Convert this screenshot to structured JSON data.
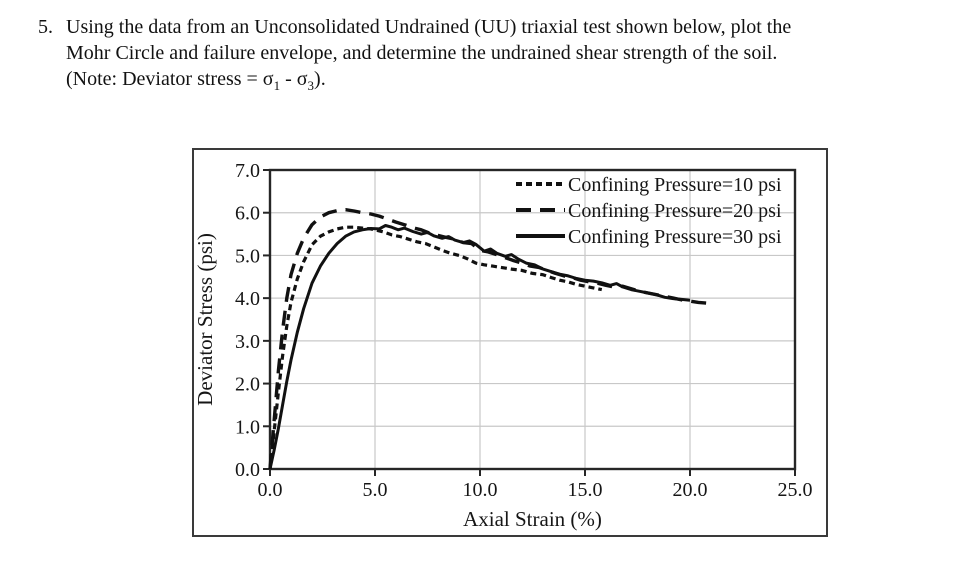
{
  "problem": {
    "number": "5.",
    "lines": [
      "Using the data from an Unconsolidated Undrained (UU) triaxial test shown below, plot the",
      "Mohr Circle and failure envelope, and determine the undrained shear strength of the soil."
    ],
    "note": {
      "prefix": "(Note: Deviator stress = ",
      "sigma1": "σ",
      "sub1": "1",
      "mid": " - ",
      "sigma3": "σ",
      "sub3": "3",
      "suffix": ")."
    }
  },
  "chart_data": {
    "type": "line",
    "title": "",
    "xlabel": "Axial Strain (%)",
    "ylabel": "Deviator Stress (psi)",
    "xlim": [
      0,
      25
    ],
    "ylim": [
      0,
      7
    ],
    "x_ticks": [
      0,
      5,
      10,
      15,
      20,
      25
    ],
    "x_tick_labels": [
      "0.0",
      "5.0",
      "10.0",
      "15.0",
      "20.0",
      "25.0"
    ],
    "y_ticks": [
      0,
      1,
      2,
      3,
      4,
      5,
      6,
      7
    ],
    "y_tick_labels": [
      "0.0",
      "1.0",
      "2.0",
      "3.0",
      "4.0",
      "5.0",
      "6.0",
      "7.0"
    ],
    "grid": true,
    "legend_position": "top-right-inside",
    "colors": {
      "line": "#111111",
      "grid": "#c8c8c8",
      "axis": "#262626",
      "frame": "#3a3a3a",
      "text": "#161616"
    },
    "series": [
      {
        "name": "Confining Pressure=10 psi",
        "dash": "short-dash",
        "peak_stress_psi": 5.66,
        "points": [
          [
            0,
            0
          ],
          [
            0.2,
            0.9
          ],
          [
            0.4,
            1.8
          ],
          [
            0.6,
            2.65
          ],
          [
            0.8,
            3.35
          ],
          [
            1,
            3.9
          ],
          [
            1.3,
            4.45
          ],
          [
            1.6,
            4.85
          ],
          [
            2,
            5.25
          ],
          [
            2.4,
            5.45
          ],
          [
            2.8,
            5.55
          ],
          [
            3.2,
            5.62
          ],
          [
            3.6,
            5.66
          ],
          [
            4,
            5.66
          ],
          [
            4.4,
            5.64
          ],
          [
            4.8,
            5.62
          ],
          [
            5,
            5.6
          ],
          [
            5.4,
            5.55
          ],
          [
            5.8,
            5.48
          ],
          [
            6.2,
            5.44
          ],
          [
            6.6,
            5.38
          ],
          [
            7,
            5.32
          ],
          [
            7.4,
            5.28
          ],
          [
            7.8,
            5.2
          ],
          [
            8.2,
            5.12
          ],
          [
            8.6,
            5.05
          ],
          [
            9,
            5.0
          ],
          [
            9.4,
            4.92
          ],
          [
            9.8,
            4.82
          ],
          [
            10.2,
            4.78
          ],
          [
            10.6,
            4.75
          ],
          [
            11,
            4.72
          ],
          [
            11.5,
            4.68
          ],
          [
            12,
            4.65
          ],
          [
            12.5,
            4.58
          ],
          [
            13,
            4.55
          ],
          [
            13.4,
            4.48
          ],
          [
            13.8,
            4.42
          ],
          [
            14.2,
            4.38
          ],
          [
            14.6,
            4.32
          ],
          [
            15,
            4.28
          ],
          [
            15.4,
            4.24
          ],
          [
            15.8,
            4.2
          ]
        ]
      },
      {
        "name": "Confining Pressure=20 psi",
        "dash": "long-dash",
        "peak_stress_psi": 6.07,
        "points": [
          [
            0,
            0
          ],
          [
            0.2,
            1.15
          ],
          [
            0.4,
            2.3
          ],
          [
            0.6,
            3.25
          ],
          [
            0.8,
            4.0
          ],
          [
            1,
            4.55
          ],
          [
            1.3,
            5.05
          ],
          [
            1.6,
            5.4
          ],
          [
            2,
            5.72
          ],
          [
            2.4,
            5.9
          ],
          [
            2.8,
            6.0
          ],
          [
            3.2,
            6.05
          ],
          [
            3.6,
            6.07
          ],
          [
            4,
            6.04
          ],
          [
            4.4,
            6.0
          ],
          [
            4.8,
            5.97
          ],
          [
            5.2,
            5.92
          ],
          [
            5.6,
            5.85
          ],
          [
            6,
            5.78
          ],
          [
            6.4,
            5.72
          ],
          [
            6.8,
            5.65
          ],
          [
            7.2,
            5.6
          ],
          [
            7.6,
            5.52
          ],
          [
            8,
            5.47
          ],
          [
            8.4,
            5.42
          ],
          [
            8.8,
            5.38
          ],
          [
            9.2,
            5.3
          ],
          [
            9.6,
            5.28
          ],
          [
            10,
            5.12
          ],
          [
            10.4,
            5.08
          ],
          [
            10.8,
            5.02
          ],
          [
            11.2,
            4.95
          ],
          [
            11.6,
            4.88
          ],
          [
            12,
            4.82
          ],
          [
            12.4,
            4.75
          ],
          [
            12.8,
            4.72
          ],
          [
            13.2,
            4.65
          ],
          [
            13.6,
            4.58
          ],
          [
            14,
            4.52
          ],
          [
            14.4,
            4.48
          ],
          [
            14.8,
            4.42
          ],
          [
            15.2,
            4.38
          ],
          [
            15.6,
            4.35
          ],
          [
            16,
            4.3
          ],
          [
            16.4,
            4.26
          ],
          [
            16.8,
            4.28
          ],
          [
            17.2,
            4.22
          ],
          [
            17.6,
            4.16
          ],
          [
            18,
            4.12
          ],
          [
            18.4,
            4.08
          ],
          [
            18.8,
            4.04
          ],
          [
            19.2,
            4.0
          ],
          [
            19.6,
            3.96
          ],
          [
            20,
            3.93
          ],
          [
            20.4,
            3.9
          ],
          [
            20.9,
            3.88
          ]
        ]
      },
      {
        "name": "Confining Pressure=30 psi",
        "dash": "solid",
        "peak_stress_psi": 5.7,
        "points": [
          [
            0,
            0
          ],
          [
            0.2,
            0.45
          ],
          [
            0.4,
            0.95
          ],
          [
            0.6,
            1.5
          ],
          [
            0.8,
            2.05
          ],
          [
            1,
            2.55
          ],
          [
            1.3,
            3.2
          ],
          [
            1.6,
            3.75
          ],
          [
            2,
            4.35
          ],
          [
            2.4,
            4.75
          ],
          [
            2.8,
            5.05
          ],
          [
            3.2,
            5.28
          ],
          [
            3.6,
            5.45
          ],
          [
            4,
            5.55
          ],
          [
            4.4,
            5.6
          ],
          [
            4.8,
            5.63
          ],
          [
            5.2,
            5.62
          ],
          [
            5.5,
            5.7
          ],
          [
            5.8,
            5.66
          ],
          [
            6.1,
            5.6
          ],
          [
            6.4,
            5.64
          ],
          [
            6.8,
            5.56
          ],
          [
            7.2,
            5.5
          ],
          [
            7.5,
            5.54
          ],
          [
            7.8,
            5.46
          ],
          [
            8.2,
            5.4
          ],
          [
            8.5,
            5.44
          ],
          [
            8.8,
            5.36
          ],
          [
            9.2,
            5.3
          ],
          [
            9.5,
            5.34
          ],
          [
            9.8,
            5.26
          ],
          [
            10.2,
            5.1
          ],
          [
            10.5,
            5.15
          ],
          [
            10.8,
            5.05
          ],
          [
            11.2,
            4.98
          ],
          [
            11.5,
            5.02
          ],
          [
            11.8,
            4.92
          ],
          [
            12.2,
            4.82
          ],
          [
            12.6,
            4.78
          ],
          [
            13,
            4.68
          ],
          [
            13.4,
            4.62
          ],
          [
            13.8,
            4.56
          ],
          [
            14.2,
            4.52
          ],
          [
            14.6,
            4.46
          ],
          [
            15,
            4.42
          ],
          [
            15.4,
            4.4
          ],
          [
            15.8,
            4.36
          ],
          [
            16.2,
            4.3
          ],
          [
            16.5,
            4.34
          ],
          [
            16.8,
            4.26
          ],
          [
            17.2,
            4.2
          ],
          [
            17.6,
            4.16
          ],
          [
            18,
            4.12
          ],
          [
            18.4,
            4.08
          ],
          [
            18.8,
            4.02
          ],
          [
            19.2,
            3.99
          ],
          [
            19.6,
            3.97
          ],
          [
            20,
            3.95
          ]
        ]
      }
    ]
  }
}
